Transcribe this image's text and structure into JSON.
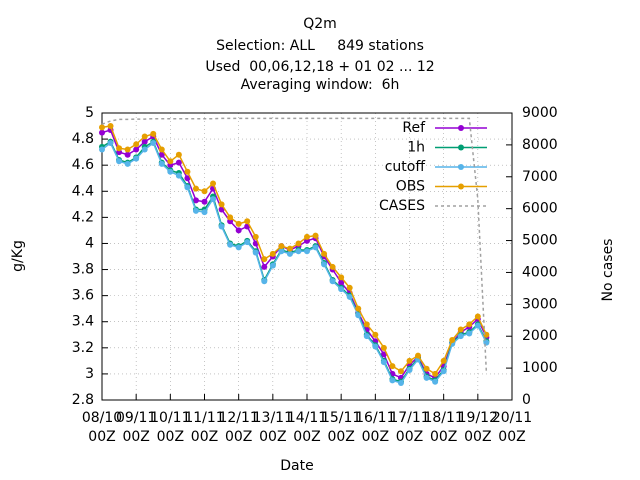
{
  "chart_data": {
    "type": "line",
    "title": "Q2m",
    "subtitle": [
      "Selection: ALL     849 stations",
      "Used  00,06,12,18 + 01 02 ... 12",
      "Averaging window:  6h"
    ],
    "xlabel": "Date",
    "ylabel": "g/Kg",
    "y2label": "No cases",
    "x": [
      0,
      0.25,
      0.5,
      0.75,
      1,
      1.25,
      1.5,
      1.75,
      2,
      2.25,
      2.5,
      2.75,
      3,
      3.25,
      3.5,
      3.75,
      4,
      4.25,
      4.5,
      4.75,
      5,
      5.25,
      5.5,
      5.75,
      6,
      6.25,
      6.5,
      6.75,
      7,
      7.25,
      7.5,
      7.75,
      8,
      8.25,
      8.5,
      8.75,
      9,
      9.25,
      9.5,
      9.75,
      10,
      10.25,
      10.5,
      10.75,
      11,
      11.25
    ],
    "xlim": [
      0,
      12
    ],
    "xticks": [
      {
        "value": 0,
        "label": "08/10\n00Z"
      },
      {
        "value": 1,
        "label": "09/11\n00Z"
      },
      {
        "value": 2,
        "label": "10/11\n00Z"
      },
      {
        "value": 3,
        "label": "11/11\n00Z"
      },
      {
        "value": 4,
        "label": "12/11\n00Z"
      },
      {
        "value": 5,
        "label": "13/11\n00Z"
      },
      {
        "value": 6,
        "label": "14/11\n00Z"
      },
      {
        "value": 7,
        "label": "15/11\n00Z"
      },
      {
        "value": 8,
        "label": "16/11\n00Z"
      },
      {
        "value": 9,
        "label": "17/11\n00Z"
      },
      {
        "value": 10,
        "label": "18/11\n00Z"
      },
      {
        "value": 11,
        "label": "19/12\n00Z"
      },
      {
        "value": 12,
        "label": "20/11\n00Z"
      }
    ],
    "ylim": [
      2.8,
      5
    ],
    "yticks": [
      2.8,
      3,
      3.2,
      3.4,
      3.6,
      3.8,
      4,
      4.2,
      4.4,
      4.6,
      4.8,
      5
    ],
    "y2lim": [
      0,
      9000
    ],
    "y2ticks": [
      0,
      1000,
      2000,
      3000,
      4000,
      5000,
      6000,
      7000,
      8000,
      9000
    ],
    "grid": true,
    "legend": "top-right",
    "series": [
      {
        "name": "Ref",
        "color": "#9400d3",
        "values": [
          4.85,
          4.87,
          4.7,
          4.68,
          4.72,
          4.78,
          4.82,
          4.68,
          4.6,
          4.62,
          4.5,
          4.33,
          4.32,
          4.42,
          4.26,
          4.17,
          4.1,
          4.13,
          4.0,
          3.82,
          3.9,
          3.98,
          3.95,
          3.98,
          4.02,
          4.04,
          3.9,
          3.8,
          3.7,
          3.62,
          3.47,
          3.34,
          3.25,
          3.15,
          3.0,
          2.97,
          3.07,
          3.13,
          3.0,
          2.97,
          3.06,
          3.24,
          3.32,
          3.36,
          3.42,
          3.28
        ]
      },
      {
        "name": "1h",
        "color": "#009e73",
        "values": [
          4.74,
          4.78,
          4.64,
          4.62,
          4.66,
          4.74,
          4.78,
          4.62,
          4.56,
          4.54,
          4.44,
          4.26,
          4.26,
          4.36,
          4.14,
          4.0,
          3.98,
          4.02,
          3.94,
          3.72,
          3.84,
          3.95,
          3.93,
          3.95,
          3.95,
          3.98,
          3.85,
          3.72,
          3.66,
          3.6,
          3.46,
          3.3,
          3.22,
          3.1,
          2.96,
          2.94,
          3.04,
          3.12,
          2.98,
          2.95,
          3.03,
          3.24,
          3.3,
          3.32,
          3.38,
          3.25
        ]
      },
      {
        "name": "cutoff",
        "color": "#56b4e9",
        "values": [
          4.72,
          4.77,
          4.63,
          4.61,
          4.65,
          4.72,
          4.77,
          4.61,
          4.55,
          4.52,
          4.43,
          4.25,
          4.24,
          4.34,
          4.13,
          3.99,
          3.97,
          4.01,
          3.93,
          3.71,
          3.83,
          3.94,
          3.92,
          3.94,
          3.94,
          3.97,
          3.84,
          3.71,
          3.65,
          3.59,
          3.45,
          3.29,
          3.21,
          3.09,
          2.95,
          2.93,
          3.03,
          3.11,
          2.97,
          2.94,
          3.02,
          3.23,
          3.29,
          3.31,
          3.37,
          3.24
        ]
      },
      {
        "name": "OBS",
        "color": "#e69f00",
        "values": [
          4.89,
          4.9,
          4.73,
          4.72,
          4.76,
          4.82,
          4.84,
          4.72,
          4.63,
          4.68,
          4.55,
          4.42,
          4.4,
          4.46,
          4.3,
          4.2,
          4.15,
          4.17,
          4.05,
          3.88,
          3.92,
          3.98,
          3.96,
          4.0,
          4.05,
          4.06,
          3.92,
          3.82,
          3.74,
          3.66,
          3.5,
          3.38,
          3.3,
          3.2,
          3.06,
          3.02,
          3.1,
          3.14,
          3.04,
          3.0,
          3.1,
          3.26,
          3.34,
          3.38,
          3.44,
          3.3
        ]
      },
      {
        "name": "CASES",
        "color": "#a0a0a0",
        "axis": "y2",
        "dashed": true,
        "values": [
          8650,
          8750,
          8800,
          8800,
          8810,
          8810,
          8820,
          8820,
          8820,
          8820,
          8820,
          8820,
          8820,
          8820,
          8830,
          8830,
          8830,
          8830,
          8830,
          8830,
          8830,
          8830,
          8830,
          8830,
          8830,
          8830,
          8830,
          8830,
          8830,
          8830,
          8830,
          8830,
          8830,
          8830,
          8830,
          8830,
          8830,
          8830,
          8830,
          8830,
          8830,
          8830,
          8830,
          8830,
          6300,
          849
        ]
      }
    ]
  }
}
